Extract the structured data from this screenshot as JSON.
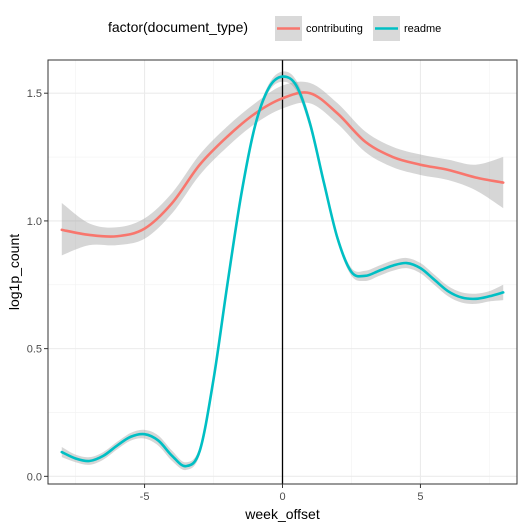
{
  "chart_data": {
    "type": "line",
    "title": "",
    "xlabel": "week_offset",
    "ylabel": "log1p_count",
    "xlim": [
      -8.5,
      8.5
    ],
    "ylim": [
      -0.03,
      1.63
    ],
    "x_ticks": [
      -5,
      0,
      5
    ],
    "y_ticks": [
      0.0,
      0.5,
      1.0,
      1.5
    ],
    "x_tick_labels": [
      "-5",
      "0",
      "5"
    ],
    "y_tick_labels": [
      "0.0",
      "0.5",
      "1.0",
      "1.5"
    ],
    "grid": true,
    "vline": 0,
    "legend": {
      "title": "factor(document_type)",
      "position": "top",
      "labels": [
        "contributing",
        "readme"
      ]
    },
    "series": [
      {
        "name": "contributing",
        "color": "#F8766D",
        "x": [
          -8,
          -7,
          -6,
          -5,
          -4,
          -3,
          -2,
          -1,
          0,
          1,
          2,
          3,
          4,
          5,
          6,
          7,
          8
        ],
        "y": [
          0.965,
          0.945,
          0.94,
          0.97,
          1.07,
          1.22,
          1.33,
          1.42,
          1.48,
          1.5,
          1.42,
          1.31,
          1.25,
          1.22,
          1.2,
          1.17,
          1.15
        ],
        "ci_lower": [
          0.865,
          0.905,
          0.905,
          0.93,
          1.03,
          1.18,
          1.29,
          1.38,
          1.44,
          1.46,
          1.38,
          1.27,
          1.21,
          1.18,
          1.16,
          1.12,
          1.05
        ],
        "ci_upper": [
          1.07,
          0.99,
          0.975,
          1.01,
          1.11,
          1.26,
          1.37,
          1.46,
          1.53,
          1.54,
          1.46,
          1.35,
          1.29,
          1.26,
          1.24,
          1.22,
          1.25
        ]
      },
      {
        "name": "readme",
        "color": "#00BFC4",
        "x": [
          -8,
          -7.5,
          -7,
          -6.5,
          -6,
          -5.5,
          -5,
          -4.5,
          -4,
          -3.5,
          -3,
          -2.5,
          -2,
          -1.5,
          -1,
          -0.5,
          0,
          0.5,
          1,
          1.5,
          2,
          2.5,
          3,
          3.5,
          4,
          4.5,
          5,
          5.5,
          6,
          6.5,
          7,
          7.5,
          8
        ],
        "y": [
          0.095,
          0.07,
          0.06,
          0.08,
          0.12,
          0.155,
          0.165,
          0.14,
          0.08,
          0.04,
          0.1,
          0.38,
          0.75,
          1.1,
          1.37,
          1.52,
          1.565,
          1.53,
          1.38,
          1.15,
          0.93,
          0.8,
          0.785,
          0.805,
          0.825,
          0.835,
          0.815,
          0.77,
          0.725,
          0.7,
          0.695,
          0.705,
          0.72
        ],
        "ci_lower": [
          0.075,
          0.055,
          0.045,
          0.065,
          0.105,
          0.14,
          0.148,
          0.12,
          0.06,
          0.025,
          0.085,
          0.365,
          0.735,
          1.085,
          1.355,
          1.505,
          1.545,
          1.51,
          1.36,
          1.135,
          0.915,
          0.785,
          0.765,
          0.785,
          0.805,
          0.815,
          0.795,
          0.75,
          0.705,
          0.68,
          0.675,
          0.685,
          0.69
        ],
        "ci_upper": [
          0.115,
          0.085,
          0.075,
          0.095,
          0.135,
          0.17,
          0.182,
          0.16,
          0.1,
          0.055,
          0.115,
          0.395,
          0.765,
          1.115,
          1.385,
          1.535,
          1.585,
          1.55,
          1.4,
          1.165,
          0.945,
          0.815,
          0.805,
          0.825,
          0.845,
          0.855,
          0.835,
          0.79,
          0.745,
          0.72,
          0.715,
          0.725,
          0.75
        ]
      }
    ]
  }
}
